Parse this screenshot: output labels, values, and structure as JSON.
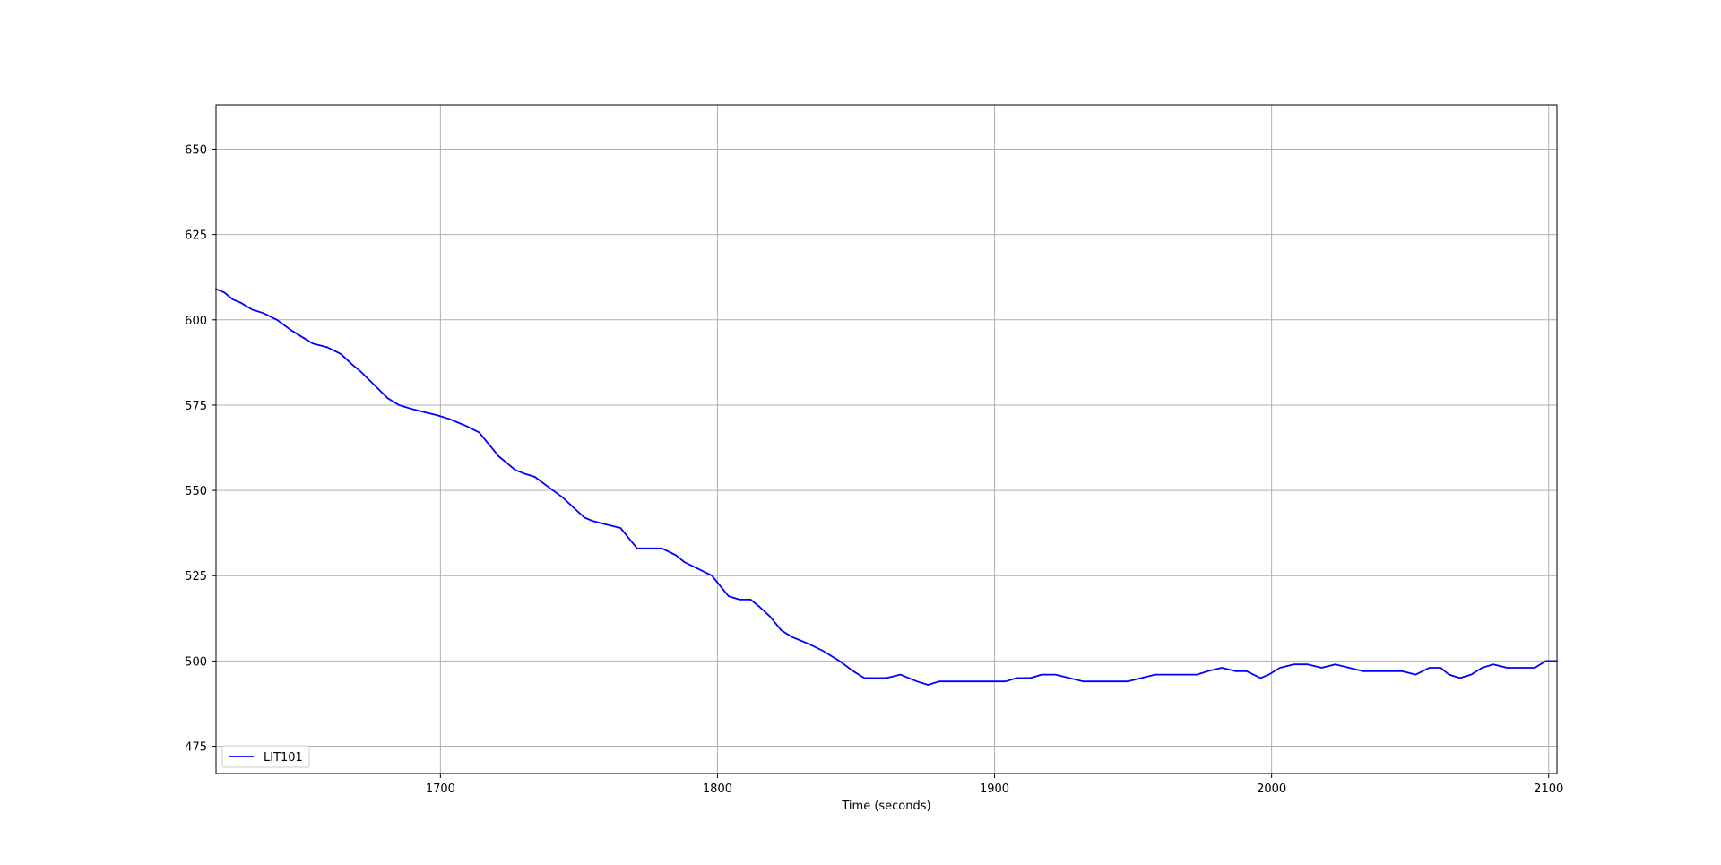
{
  "chart_data": {
    "type": "line",
    "title": "",
    "xlabel": "Time (seconds)",
    "ylabel": "",
    "xlim": [
      1619,
      2103
    ],
    "ylim": [
      467,
      663
    ],
    "xticks": [
      1700,
      1800,
      1900,
      2000,
      2100
    ],
    "yticks": [
      475,
      500,
      525,
      550,
      575,
      600,
      625,
      650
    ],
    "grid": true,
    "legend": {
      "placement": "lower-left",
      "entries": [
        "LIT101"
      ]
    },
    "series": [
      {
        "name": "LIT101",
        "color": "#0000ff",
        "x": [
          1619,
          1622,
          1625,
          1628,
          1632,
          1636,
          1641,
          1646,
          1650,
          1654,
          1659,
          1664,
          1668,
          1671,
          1676,
          1681,
          1685,
          1689,
          1694,
          1699,
          1703,
          1709,
          1714,
          1717,
          1721,
          1724,
          1727,
          1730,
          1734,
          1739,
          1744,
          1748,
          1752,
          1755,
          1760,
          1765,
          1768,
          1771,
          1775,
          1780,
          1785,
          1788,
          1793,
          1798,
          1801,
          1804,
          1808,
          1812,
          1815,
          1819,
          1823,
          1827,
          1833,
          1838,
          1844,
          1849,
          1853,
          1857,
          1861,
          1866,
          1872,
          1876,
          1880,
          1885,
          1891,
          1896,
          1899,
          1904,
          1908,
          1913,
          1917,
          1922,
          1927,
          1932,
          1937,
          1942,
          1948,
          1953,
          1958,
          1963,
          1968,
          1973,
          1977,
          1982,
          1987,
          1991,
          1996,
          1999,
          2003,
          2008,
          2013,
          2018,
          2023,
          2028,
          2033,
          2037,
          2042,
          2047,
          2052,
          2057,
          2061,
          2064,
          2068,
          2072,
          2076,
          2080,
          2085,
          2090,
          2095,
          2099,
          2103
        ],
        "y": [
          609,
          608,
          606,
          605,
          603,
          602,
          600,
          597,
          595,
          593,
          592,
          590,
          587,
          585,
          581,
          577,
          575,
          574,
          573,
          572,
          571,
          569,
          567,
          564,
          560,
          558,
          556,
          555,
          554,
          551,
          548,
          545,
          542,
          541,
          540,
          539,
          536,
          533,
          533,
          533,
          531,
          529,
          527,
          525,
          522,
          519,
          518,
          518,
          516,
          513,
          509,
          507,
          505,
          503,
          500,
          497,
          495,
          495,
          495,
          496,
          494,
          493,
          494,
          494,
          494,
          494,
          494,
          494,
          495,
          495,
          496,
          496,
          495,
          494,
          494,
          494,
          494,
          495,
          496,
          496,
          496,
          496,
          497,
          498,
          497,
          497,
          495,
          496,
          498,
          499,
          499,
          498,
          499,
          498,
          497,
          497,
          497,
          497,
          496,
          498,
          498,
          496,
          495,
          496,
          498,
          499,
          498,
          498,
          498,
          500,
          500
        ]
      }
    ]
  }
}
